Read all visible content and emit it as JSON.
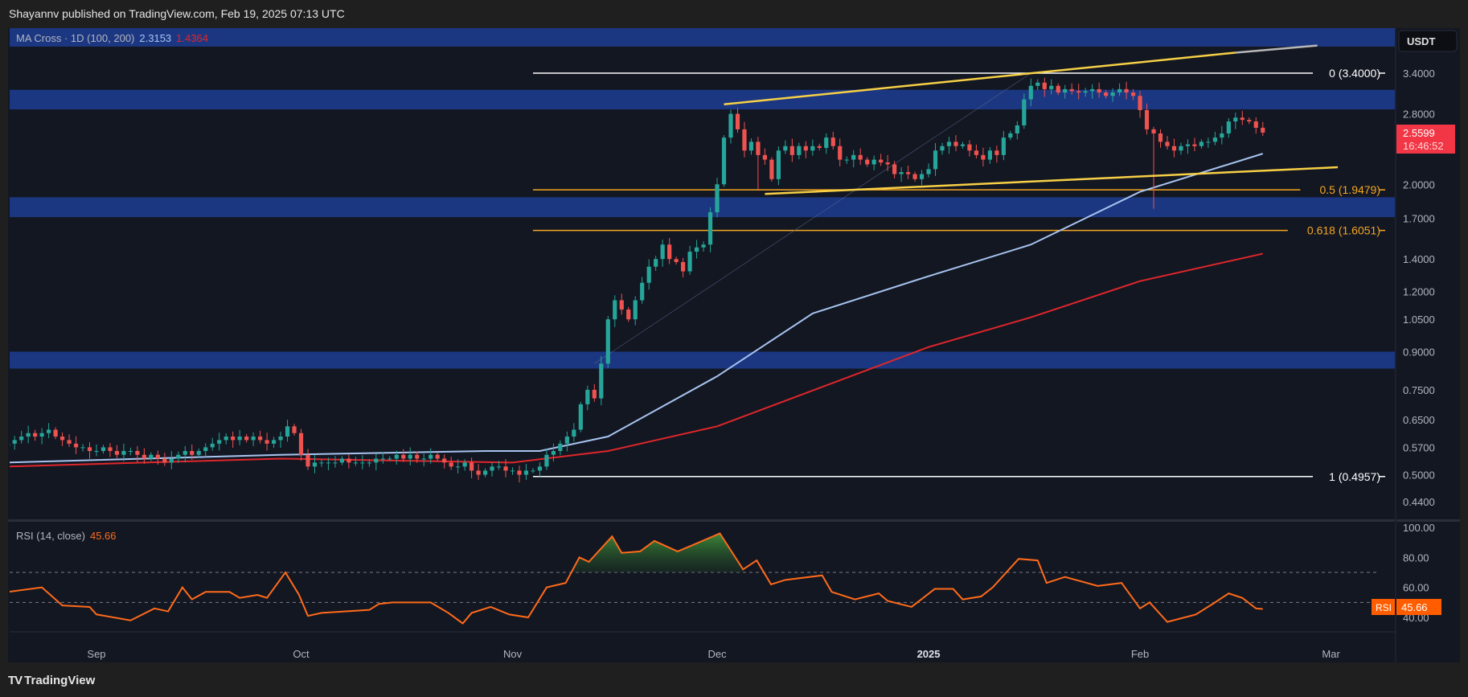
{
  "header": {
    "published": "Shayannv published on TradingView.com, Feb 19, 2025 07:13 UTC"
  },
  "legend": {
    "ma_label": "MA Cross · 1D (100, 200)",
    "ma100_value": "2.3153",
    "ma200_value": "1.4364",
    "rsi_label": "RSI (14, close)",
    "rsi_value": "45.66"
  },
  "currency": "USDT",
  "last_price": {
    "value": "2.5599",
    "countdown": "16:46:52"
  },
  "rsi_badge": {
    "label": "RSI",
    "value": "45.66"
  },
  "footer": {
    "brand": "TradingView"
  },
  "colors": {
    "bg": "#131722",
    "up": "#26a69a",
    "down": "#ef5350",
    "ma100": "#a8c4f0",
    "ma200": "#e0262b",
    "zone": "#1e3b8c",
    "fib_white": "#ffffff",
    "fib_orange": "#f5a623",
    "trend": "#f7d046",
    "rsi": "#ff6a1a"
  },
  "chart_data": [
    {
      "type": "candlestick",
      "title": "MA Cross · 1D (100, 200)",
      "scale": "log",
      "start_date": "2024-08-19",
      "interval": "1D",
      "ylim": [
        0.42,
        4.3
      ],
      "yticks": [
        3.4,
        2.8,
        2.0,
        1.7,
        1.4,
        1.2,
        1.05,
        0.9,
        0.75,
        0.65,
        0.57,
        0.5,
        0.44
      ],
      "ytick_labels": [
        "3.4000",
        "2.8000",
        "2.0000",
        "1.7000",
        "1.4000",
        "1.2000",
        "1.0500",
        "0.9000",
        "0.7500",
        "0.6500",
        "0.5700",
        "0.5000",
        "0.4400"
      ],
      "xticks": [
        {
          "label": "Sep",
          "day": 13
        },
        {
          "label": "Oct",
          "day": 43
        },
        {
          "label": "Nov",
          "day": 74
        },
        {
          "label": "Dec",
          "day": 104
        },
        {
          "label": "2025",
          "day": 135,
          "bold": true
        },
        {
          "label": "Feb",
          "day": 166
        },
        {
          "label": "Mar",
          "day": 194
        }
      ],
      "closes": [
        0.58,
        0.59,
        0.6,
        0.61,
        0.6,
        0.61,
        0.62,
        0.6,
        0.59,
        0.58,
        0.57,
        0.57,
        0.56,
        0.56,
        0.57,
        0.56,
        0.55,
        0.56,
        0.56,
        0.55,
        0.54,
        0.55,
        0.54,
        0.53,
        0.54,
        0.55,
        0.56,
        0.55,
        0.56,
        0.57,
        0.58,
        0.59,
        0.6,
        0.59,
        0.6,
        0.59,
        0.6,
        0.59,
        0.58,
        0.59,
        0.6,
        0.63,
        0.61,
        0.55,
        0.52,
        0.53,
        0.53,
        0.53,
        0.53,
        0.54,
        0.53,
        0.53,
        0.53,
        0.53,
        0.54,
        0.54,
        0.54,
        0.55,
        0.54,
        0.55,
        0.54,
        0.54,
        0.55,
        0.54,
        0.53,
        0.52,
        0.52,
        0.53,
        0.51,
        0.5,
        0.51,
        0.52,
        0.52,
        0.51,
        0.51,
        0.5,
        0.51,
        0.51,
        0.52,
        0.55,
        0.56,
        0.58,
        0.6,
        0.62,
        0.7,
        0.75,
        0.72,
        0.85,
        1.05,
        1.15,
        1.1,
        1.05,
        1.15,
        1.25,
        1.35,
        1.4,
        1.5,
        1.4,
        1.38,
        1.32,
        1.45,
        1.48,
        1.5,
        1.75,
        2.0,
        2.5,
        2.8,
        2.6,
        2.35,
        2.45,
        2.3,
        2.25,
        2.05,
        2.35,
        2.4,
        2.3,
        2.4,
        2.35,
        2.4,
        2.38,
        2.5,
        2.4,
        2.25,
        2.25,
        2.3,
        2.25,
        2.2,
        2.25,
        2.22,
        2.2,
        2.1,
        2.12,
        2.1,
        2.05,
        2.1,
        2.15,
        2.35,
        2.4,
        2.45,
        2.4,
        2.42,
        2.35,
        2.3,
        2.25,
        2.35,
        2.3,
        2.5,
        2.55,
        2.65,
        3.0,
        3.2,
        3.25,
        3.15,
        3.2,
        3.1,
        3.15,
        3.12,
        3.1,
        3.12,
        3.15,
        3.1,
        3.05,
        3.1,
        3.15,
        3.1,
        3.05,
        2.85,
        2.6,
        2.55,
        2.45,
        2.4,
        2.35,
        2.4,
        2.42,
        2.4,
        2.45,
        2.45,
        2.5,
        2.55,
        2.7,
        2.75,
        2.72,
        2.7,
        2.62,
        2.5599
      ],
      "special_lows": [
        [
          168,
          1.78
        ],
        [
          110,
          1.95
        ]
      ],
      "ma100": [
        [
          0,
          0.53
        ],
        [
          40,
          0.55
        ],
        [
          70,
          0.56
        ],
        [
          78,
          0.56
        ],
        [
          88,
          0.6
        ],
        [
          104,
          0.8
        ],
        [
          118,
          1.08
        ],
        [
          135,
          1.29
        ],
        [
          150,
          1.5
        ],
        [
          166,
          1.93
        ],
        [
          184,
          2.3153
        ]
      ],
      "ma200": [
        [
          0,
          0.52
        ],
        [
          40,
          0.54
        ],
        [
          74,
          0.53
        ],
        [
          88,
          0.56
        ],
        [
          104,
          0.63
        ],
        [
          135,
          0.92
        ],
        [
          150,
          1.06
        ],
        [
          166,
          1.26
        ],
        [
          184,
          1.4364
        ]
      ],
      "zones": [
        [
          3.86,
          4.22
        ],
        [
          2.86,
          3.14
        ],
        [
          1.71,
          1.88
        ],
        [
          0.83,
          0.9
        ]
      ],
      "fib_levels": [
        {
          "label": "0 (3.4000)",
          "price": 3.4,
          "color": "white"
        },
        {
          "label": "0.5 (1.9479)",
          "price": 1.9479,
          "color": "orange"
        },
        {
          "label": "0.618 (1.6051)",
          "price": 1.6051,
          "color": "orange"
        },
        {
          "label": "1 (0.4957)",
          "price": 0.4957,
          "color": "white"
        }
      ],
      "fib_start_day": 77,
      "trendlines": [
        {
          "from": [
            105,
            2.93
          ],
          "to": [
            180,
            3.75
          ],
          "ext_to": [
            192,
            3.88
          ]
        },
        {
          "from": [
            111,
            1.91
          ],
          "to": [
            195,
            2.17
          ]
        }
      ]
    },
    {
      "type": "line",
      "title": "RSI (14, close)",
      "ylim": [
        20,
        100
      ],
      "yticks": [
        100,
        80,
        60,
        40
      ],
      "ytick_labels": [
        "100.00",
        "80.00",
        "60.00",
        "40.00"
      ],
      "bands": [
        70,
        50,
        30
      ],
      "overbought": 70,
      "points": [
        [
          0,
          57
        ],
        [
          5,
          60
        ],
        [
          8,
          48
        ],
        [
          12,
          47
        ],
        [
          13,
          42
        ],
        [
          18,
          38
        ],
        [
          21.5,
          46
        ],
        [
          23.5,
          44
        ],
        [
          25.6,
          60
        ],
        [
          27,
          52
        ],
        [
          29,
          57
        ],
        [
          32.5,
          57
        ],
        [
          34,
          53
        ],
        [
          36.6,
          55
        ],
        [
          38,
          53
        ],
        [
          40.7,
          70
        ],
        [
          42.7,
          55
        ],
        [
          44,
          41
        ],
        [
          46,
          43
        ],
        [
          53,
          45
        ],
        [
          54.4,
          49
        ],
        [
          56.4,
          50
        ],
        [
          62,
          50
        ],
        [
          64.6,
          43
        ],
        [
          66.7,
          36
        ],
        [
          68,
          43
        ],
        [
          70.8,
          47
        ],
        [
          73.5,
          42
        ],
        [
          76.3,
          40
        ],
        [
          79,
          60
        ],
        [
          81.8,
          63
        ],
        [
          83.8,
          80
        ],
        [
          85.2,
          77
        ],
        [
          88.6,
          94
        ],
        [
          90,
          83
        ],
        [
          92.7,
          84
        ],
        [
          94.8,
          91
        ],
        [
          98.2,
          84
        ],
        [
          100.3,
          88
        ],
        [
          104.4,
          96
        ],
        [
          107.8,
          72
        ],
        [
          109.8,
          78
        ],
        [
          111.9,
          62
        ],
        [
          114,
          65
        ],
        [
          119.4,
          68
        ],
        [
          120.8,
          57
        ],
        [
          124.2,
          52
        ],
        [
          127.7,
          56
        ],
        [
          129,
          51
        ],
        [
          132.5,
          47
        ],
        [
          135.9,
          59
        ],
        [
          138.6,
          59
        ],
        [
          140,
          52
        ],
        [
          142.7,
          54
        ],
        [
          144.4,
          60
        ],
        [
          148.2,
          79
        ],
        [
          151,
          78
        ],
        [
          152.3,
          63
        ],
        [
          155,
          67
        ],
        [
          159.8,
          61
        ],
        [
          163.3,
          63
        ],
        [
          166,
          46
        ],
        [
          167.4,
          50
        ],
        [
          170,
          37
        ],
        [
          174.2,
          42
        ],
        [
          177,
          50
        ],
        [
          179,
          56
        ],
        [
          181,
          53
        ],
        [
          183,
          46
        ],
        [
          184,
          45.66
        ]
      ]
    }
  ]
}
